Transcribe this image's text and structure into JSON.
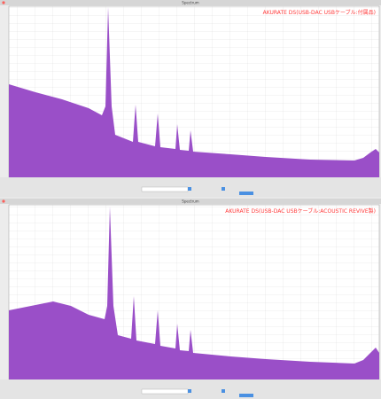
{
  "windows": [
    {
      "window_title": "Spectrum",
      "annotation": "AKURATE DS(USB-DAC USBケーブル:付属品)"
    },
    {
      "window_title": "Spectrum",
      "annotation": "AKURATE DS(USB-DAC USBケーブル:ACOUSTIC REVIVE製)"
    }
  ]
}
